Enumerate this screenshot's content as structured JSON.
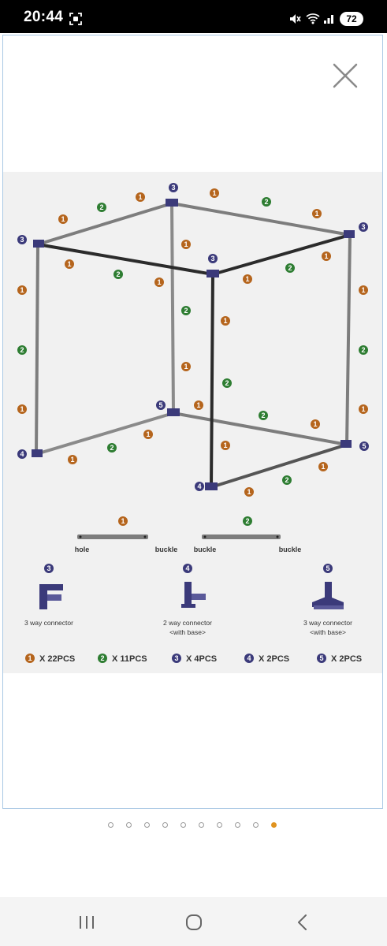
{
  "status_bar": {
    "time": "20:44",
    "battery": "72",
    "icons": [
      "screenshot-icon",
      "mute-icon",
      "wifi-icon",
      "signal-icon",
      "battery-icon"
    ]
  },
  "viewer": {
    "close_icon": "close-icon",
    "image_alt_icon": "tent-frame-diagram",
    "image": {
      "labels": {
        "hole": "hole",
        "buckle1": "buckle",
        "buckle2": "buckle",
        "buckle3": "buckle"
      },
      "connectors": [
        {
          "badge": "3",
          "line1": "3 way connector",
          "line2": ""
        },
        {
          "badge": "4",
          "line1": "2 way connector",
          "line2": "<with base>"
        },
        {
          "badge": "5",
          "line1": "3 way connector",
          "line2": "<with base>"
        }
      ],
      "legend": [
        {
          "badge": "1",
          "text": "X 22PCS",
          "color": "#b5651d"
        },
        {
          "badge": "2",
          "text": "X 11PCS",
          "color": "#2e7d32"
        },
        {
          "badge": "3",
          "text": "X 4PCS",
          "color": "#3b3a7a"
        },
        {
          "badge": "4",
          "text": "X 2PCS",
          "color": "#3b3a7a"
        },
        {
          "badge": "5",
          "text": "X 2PCS",
          "color": "#3b3a7a"
        }
      ],
      "colors": {
        "pole_brown": "#b5651d",
        "pole_green": "#2e7d32",
        "connector": "#3b3a7a",
        "pole_grey": "#7d7d7d",
        "pole_dark": "#2b2b2b"
      }
    }
  },
  "pager": {
    "count": 10,
    "active_index": 9
  },
  "nav_bar": {
    "icons": [
      "recents-icon",
      "home-icon",
      "back-icon"
    ]
  }
}
